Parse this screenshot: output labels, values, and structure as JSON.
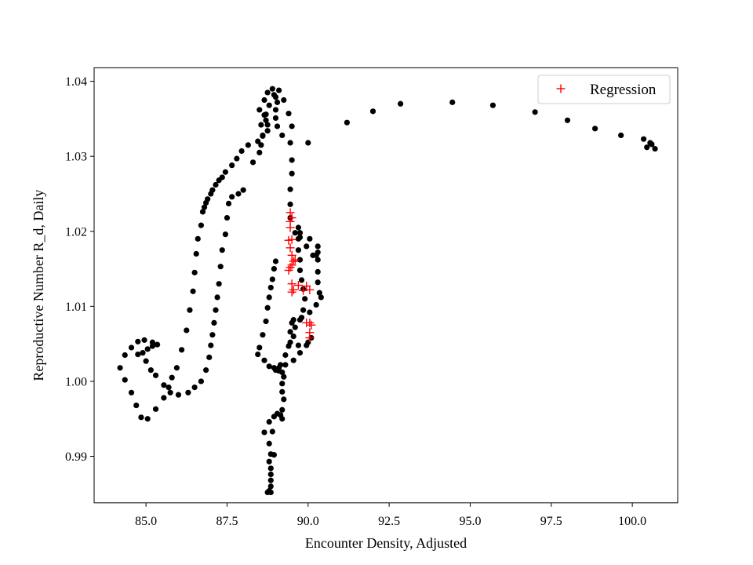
{
  "chart_data": {
    "type": "scatter",
    "title": "",
    "xlabel": "Encounter Density, Adjusted",
    "ylabel": "Reproductive Number R_d, Daily",
    "xlim": [
      83.4,
      101.4
    ],
    "ylim": [
      0.9838,
      1.0418
    ],
    "xticks": [
      85.0,
      87.5,
      90.0,
      92.5,
      95.0,
      97.5,
      100.0
    ],
    "xtick_labels": [
      "85.0",
      "87.5",
      "90.0",
      "92.5",
      "95.0",
      "97.5",
      "100.0"
    ],
    "yticks": [
      0.99,
      1.0,
      1.01,
      1.02,
      1.03,
      1.04
    ],
    "ytick_labels": [
      "0.99",
      "1.00",
      "1.01",
      "1.02",
      "1.03",
      "1.04"
    ],
    "grid": false,
    "legend": {
      "placement": "top-right",
      "entries": [
        "Regression"
      ]
    },
    "series": [
      {
        "marker": "dot",
        "color": "#000000",
        "points": [
          [
            88.85,
            0.9852
          ],
          [
            88.8,
            0.9854
          ],
          [
            88.75,
            0.9852
          ],
          [
            88.85,
            0.986
          ],
          [
            88.85,
            0.9868
          ],
          [
            88.85,
            0.9876
          ],
          [
            88.85,
            0.9884
          ],
          [
            88.8,
            0.9893
          ],
          [
            88.85,
            0.9903
          ],
          [
            88.95,
            0.9902
          ],
          [
            88.8,
            0.9917
          ],
          [
            88.65,
            0.9932
          ],
          [
            88.9,
            0.9933
          ],
          [
            88.8,
            0.9946
          ],
          [
            88.95,
            0.9953
          ],
          [
            89.05,
            0.9957
          ],
          [
            89.15,
            0.9955
          ],
          [
            89.2,
            0.995
          ],
          [
            89.2,
            0.9962
          ],
          [
            89.25,
            0.9976
          ],
          [
            89.2,
            0.9986
          ],
          [
            89.2,
            0.9997
          ],
          [
            89.25,
            1.0006
          ],
          [
            89.2,
            1.0012
          ],
          [
            89.1,
            1.0014
          ],
          [
            89.0,
            1.0015
          ],
          [
            89.1,
            1.0018
          ],
          [
            89.3,
            1.0022
          ],
          [
            89.55,
            1.0028
          ],
          [
            89.75,
            1.0038
          ],
          [
            89.95,
            1.0048
          ],
          [
            90.0,
            1.0052
          ],
          [
            90.1,
            1.0058
          ],
          [
            89.7,
            1.0048
          ],
          [
            89.45,
            1.0052
          ],
          [
            89.45,
            1.0066
          ],
          [
            89.5,
            1.0078
          ],
          [
            89.55,
            1.0082
          ],
          [
            89.8,
            1.0085
          ],
          [
            90.05,
            1.0092
          ],
          [
            90.25,
            1.0102
          ],
          [
            90.4,
            1.0112
          ],
          [
            90.35,
            1.0118
          ],
          [
            90.3,
            1.0132
          ],
          [
            90.3,
            1.0146
          ],
          [
            90.3,
            1.0162
          ],
          [
            90.3,
            1.0172
          ],
          [
            90.3,
            1.018
          ],
          [
            90.25,
            1.0168
          ],
          [
            90.15,
            1.0168
          ],
          [
            89.95,
            1.018
          ],
          [
            89.75,
            1.0192
          ],
          [
            89.6,
            1.0198
          ],
          [
            89.45,
            1.0218
          ],
          [
            89.45,
            1.0236
          ],
          [
            89.45,
            1.0256
          ],
          [
            89.5,
            1.0277
          ],
          [
            89.5,
            1.0295
          ],
          [
            89.45,
            1.0318
          ],
          [
            89.5,
            1.034
          ],
          [
            89.4,
            1.0357
          ],
          [
            89.25,
            1.0375
          ],
          [
            89.1,
            1.0388
          ],
          [
            88.9,
            1.039
          ],
          [
            88.75,
            1.0385
          ],
          [
            88.65,
            1.0375
          ],
          [
            88.5,
            1.0362
          ],
          [
            88.65,
            1.0355
          ],
          [
            88.7,
            1.0348
          ],
          [
            88.75,
            1.0342
          ],
          [
            88.75,
            1.0334
          ],
          [
            88.6,
            1.0327
          ],
          [
            88.45,
            1.032
          ],
          [
            88.15,
            1.0315
          ],
          [
            87.95,
            1.0307
          ],
          [
            87.8,
            1.0297
          ],
          [
            87.65,
            1.0288
          ],
          [
            87.45,
            1.0279
          ],
          [
            87.35,
            1.0272
          ],
          [
            87.25,
            1.0268
          ],
          [
            87.15,
            1.0262
          ],
          [
            87.05,
            1.0255
          ],
          [
            87.0,
            1.025
          ],
          [
            86.9,
            1.0243
          ],
          [
            86.85,
            1.0238
          ],
          [
            86.8,
            1.0232
          ],
          [
            86.75,
            1.0226
          ],
          [
            86.7,
            1.0208
          ],
          [
            86.6,
            1.019
          ],
          [
            86.55,
            1.017
          ],
          [
            86.5,
            1.0145
          ],
          [
            86.45,
            1.012
          ],
          [
            86.35,
            1.0095
          ],
          [
            86.25,
            1.0068
          ],
          [
            86.1,
            1.0042
          ],
          [
            85.95,
            1.0018
          ],
          [
            85.8,
            1.0005
          ],
          [
            85.7,
            0.9992
          ],
          [
            85.55,
            0.9978
          ],
          [
            85.3,
            0.9963
          ],
          [
            85.05,
            0.995
          ],
          [
            84.85,
            0.9952
          ],
          [
            84.7,
            0.9968
          ],
          [
            84.55,
            0.9985
          ],
          [
            84.35,
            1.0002
          ],
          [
            84.2,
            1.0018
          ],
          [
            84.35,
            1.0035
          ],
          [
            84.55,
            1.0045
          ],
          [
            84.75,
            1.0053
          ],
          [
            84.95,
            1.0055
          ],
          [
            85.2,
            1.0052
          ],
          [
            85.35,
            1.0049
          ],
          [
            85.2,
            1.0047
          ],
          [
            85.05,
            1.0043
          ],
          [
            84.9,
            1.0038
          ],
          [
            84.75,
            1.0036
          ],
          [
            85.0,
            1.0027
          ],
          [
            85.15,
            1.0015
          ],
          [
            85.3,
            1.0008
          ],
          [
            85.55,
            0.9995
          ],
          [
            85.75,
            0.9985
          ],
          [
            86.0,
            0.9982
          ],
          [
            86.3,
            0.9985
          ],
          [
            86.5,
            0.9992
          ],
          [
            86.7,
            1.0
          ],
          [
            86.85,
            1.0015
          ],
          [
            86.95,
            1.0032
          ],
          [
            87.0,
            1.0048
          ],
          [
            87.05,
            1.0062
          ],
          [
            87.1,
            1.0078
          ],
          [
            87.15,
            1.0095
          ],
          [
            87.2,
            1.0112
          ],
          [
            87.25,
            1.013
          ],
          [
            87.3,
            1.0153
          ],
          [
            87.35,
            1.0175
          ],
          [
            87.45,
            1.0196
          ],
          [
            87.5,
            1.0218
          ],
          [
            87.55,
            1.0237
          ],
          [
            87.65,
            1.0246
          ],
          [
            87.85,
            1.025
          ],
          [
            88.0,
            1.0255
          ],
          [
            88.3,
            1.0292
          ],
          [
            88.5,
            1.0305
          ],
          [
            88.55,
            1.0315
          ],
          [
            88.6,
            1.0328
          ],
          [
            88.55,
            1.0342
          ],
          [
            88.7,
            1.0356
          ],
          [
            88.8,
            1.0368
          ],
          [
            88.95,
            1.0382
          ],
          [
            89.0,
            1.0379
          ],
          [
            89.05,
            1.0372
          ],
          [
            89.0,
            1.0362
          ],
          [
            89.0,
            1.0351
          ],
          [
            89.05,
            1.034
          ],
          [
            89.2,
            1.0328
          ],
          [
            90.0,
            1.0318
          ],
          [
            91.2,
            1.0345
          ],
          [
            92.0,
            1.036
          ],
          [
            92.85,
            1.037
          ],
          [
            94.45,
            1.0372
          ],
          [
            95.7,
            1.0368
          ],
          [
            97.0,
            1.0359
          ],
          [
            98.0,
            1.0348
          ],
          [
            98.85,
            1.0337
          ],
          [
            99.65,
            1.0328
          ],
          [
            100.35,
            1.0323
          ],
          [
            100.55,
            1.0318
          ],
          [
            100.45,
            1.0312
          ],
          [
            100.7,
            1.031
          ],
          [
            100.6,
            1.0316
          ],
          [
            89.0,
            1.016
          ],
          [
            88.95,
            1.015
          ],
          [
            88.9,
            1.0136
          ],
          [
            88.85,
            1.0125
          ],
          [
            88.8,
            1.0112
          ],
          [
            88.75,
            1.0098
          ],
          [
            88.7,
            1.008
          ],
          [
            88.6,
            1.0062
          ],
          [
            88.5,
            1.0045
          ],
          [
            88.45,
            1.0036
          ],
          [
            88.65,
            1.0028
          ],
          [
            88.8,
            1.002
          ],
          [
            88.95,
            1.0018
          ],
          [
            89.15,
            1.0022
          ],
          [
            89.3,
            1.0035
          ],
          [
            89.4,
            1.0047
          ],
          [
            89.55,
            1.006
          ],
          [
            89.6,
            1.0072
          ],
          [
            89.75,
            1.0082
          ],
          [
            89.85,
            1.0095
          ],
          [
            89.9,
            1.011
          ],
          [
            89.85,
            1.0123
          ],
          [
            89.8,
            1.0135
          ],
          [
            89.75,
            1.0148
          ],
          [
            89.75,
            1.0162
          ],
          [
            89.7,
            1.0175
          ],
          [
            89.7,
            1.019
          ],
          [
            89.75,
            1.0198
          ],
          [
            89.7,
            1.0205
          ],
          [
            90.05,
            1.019
          ]
        ]
      },
      {
        "name": "Regression",
        "marker": "plus",
        "color": "#ff0000",
        "points": [
          [
            89.45,
            1.0225
          ],
          [
            89.5,
            1.0218
          ],
          [
            89.45,
            1.0213
          ],
          [
            89.45,
            1.0205
          ],
          [
            89.5,
            1.0189
          ],
          [
            89.4,
            1.0188
          ],
          [
            89.45,
            1.0178
          ],
          [
            89.5,
            1.0168
          ],
          [
            89.55,
            1.016
          ],
          [
            89.6,
            1.0162
          ],
          [
            89.5,
            1.0155
          ],
          [
            89.45,
            1.0152
          ],
          [
            89.4,
            1.0148
          ],
          [
            89.5,
            1.013
          ],
          [
            89.7,
            1.0128
          ],
          [
            89.55,
            1.0122
          ],
          [
            89.5,
            1.0119
          ],
          [
            89.95,
            1.0127
          ],
          [
            89.85,
            1.0121
          ],
          [
            90.05,
            1.0122
          ],
          [
            89.95,
            1.0078
          ],
          [
            90.05,
            1.0078
          ],
          [
            90.1,
            1.0075
          ],
          [
            90.05,
            1.0065
          ],
          [
            90.05,
            1.0058
          ]
        ]
      }
    ]
  }
}
